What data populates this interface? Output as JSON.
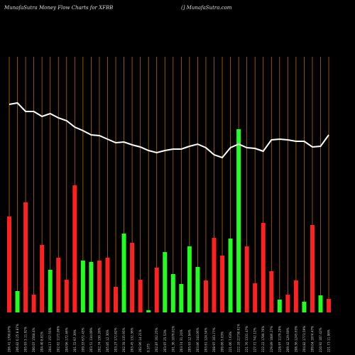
{
  "chart_data": {
    "type": "bar",
    "title": "MunafaSutra  Money Flow  Charts for XFBB",
    "subtitle": "(] MunafaSutra.com",
    "categories": [
      "206.41 1700.07%",
      "206.82 0.25 8.87%",
      "205.93 3.11.92%",
      "200.07 1568.4%",
      "204.40 8.81%",
      "204.17 157.55%",
      "202.62 1172.06%",
      "204.96 172.46%",
      "201.72 97.39%",
      "209.33 672.45%",
      "203.51 134.09%",
      "202.74 150.26%",
      "205.85 12.30%",
      "203.27 172.82%",
      "202.78 135.95%",
      "203.45 132.36%",
      "202.96 14.21%",
      "0.375",
      "202.87 162.25%",
      "203.97 25.53%",
      "201.36 1076.01%",
      "203.74 31.24%",
      "205.93 12.94%",
      "203.86 144.06%",
      "203.61 124.54%",
      "208.97 103.77%",
      "209.66 5.03%",
      "221.06 7.63%",
      "222.18 21730.61%",
      "221.76 1331.47%",
      "227.72 742.12%",
      "222.22 1780.76%",
      "229.89 1086.27%",
      "228.97 1179.29%",
      "209.42 129.69%",
      "208.56 1245.63%",
      "204.82 1773.59%",
      "209.04 1074.47%",
      "210.92 107.42%",
      "221.73 11.98%"
    ],
    "values": [
      135,
      30,
      155,
      25,
      95,
      60,
      77,
      46,
      179,
      73,
      71,
      73,
      77,
      36,
      111,
      98,
      46,
      3,
      63,
      85,
      54,
      40,
      93,
      64,
      45,
      105,
      80,
      104,
      258,
      93,
      41,
      126,
      58,
      18,
      25,
      45,
      15,
      123,
      24,
      19
    ],
    "colors": [
      "#ff2020",
      "#20ff20",
      "#ff2020",
      "#ff2020",
      "#ff2020",
      "#20ff20",
      "#ff2020",
      "#ff2020",
      "#ff2020",
      "#20ff20",
      "#20ff20",
      "#ff2020",
      "#ff2020",
      "#ff2020",
      "#20ff20",
      "#ff2020",
      "#ff2020",
      "#20ff20",
      "#ff2020",
      "#20ff20",
      "#20ff20",
      "#20ff20",
      "#20ff20",
      "#20ff20",
      "#ff2020",
      "#ff2020",
      "#ff2020",
      "#20ff20",
      "#20ff20",
      "#ff2020",
      "#ff2020",
      "#ff2020",
      "#ff2020",
      "#20ff20",
      "#ff2020",
      "#ff2020",
      "#20ff20",
      "#ff2020",
      "#20ff20",
      "#ff2020"
    ],
    "line_values": [
      293,
      295,
      283,
      283,
      276,
      280,
      274,
      270,
      261,
      256,
      250,
      249,
      244,
      239,
      240,
      236,
      233,
      228,
      225,
      228,
      230,
      230,
      234,
      237,
      232,
      222,
      218,
      232,
      237,
      232,
      231,
      227,
      243,
      244,
      243,
      241,
      241,
      233,
      234,
      250
    ],
    "line_color": "#ffffff",
    "gridline_color": "#b86a00",
    "ylim": [
      0,
      360
    ]
  }
}
